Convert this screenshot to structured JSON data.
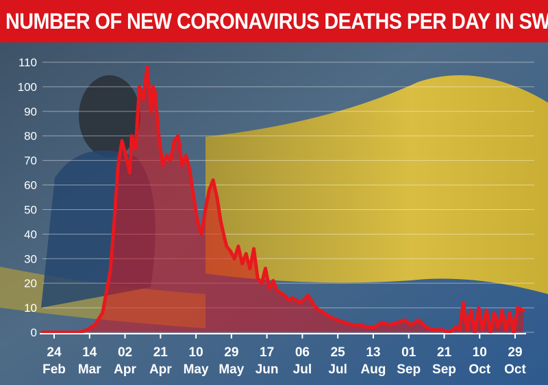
{
  "chart_data": {
    "type": "area",
    "title": "NUMBER OF NEW CORONAVIRUS DEATHS PER DAY IN SWEDEN",
    "xlabel": "",
    "ylabel": "",
    "ylim": [
      0,
      110
    ],
    "yticks": [
      0,
      10,
      20,
      30,
      40,
      50,
      60,
      70,
      80,
      90,
      100,
      110
    ],
    "xticks": [
      {
        "day": "24",
        "month": "Feb"
      },
      {
        "day": "14",
        "month": "Mar"
      },
      {
        "day": "02",
        "month": "Apr"
      },
      {
        "day": "21",
        "month": "Apr"
      },
      {
        "day": "10",
        "month": "May"
      },
      {
        "day": "29",
        "month": "May"
      },
      {
        "day": "17",
        "month": "Jun"
      },
      {
        "day": "06",
        "month": "Jul"
      },
      {
        "day": "25",
        "month": "Jul"
      },
      {
        "day": "13",
        "month": "Aug"
      },
      {
        "day": "01",
        "month": "Sep"
      },
      {
        "day": "21",
        "month": "Sep"
      },
      {
        "day": "10",
        "month": "Oct"
      },
      {
        "day": "29",
        "month": "Oct"
      }
    ],
    "grid": true,
    "line_color": "#e8181e",
    "fill_color": "#d9141b",
    "series": [
      {
        "x": [
          "2020-02-24",
          "2020-03-14",
          "2020-03-18",
          "2020-03-22",
          "2020-03-26",
          "2020-03-30",
          "2020-04-01",
          "2020-04-03",
          "2020-04-05",
          "2020-04-07",
          "2020-04-09",
          "2020-04-10",
          "2020-04-12",
          "2020-04-14",
          "2020-04-16",
          "2020-04-18",
          "2020-04-20",
          "2020-04-21",
          "2020-04-22",
          "2020-04-24",
          "2020-04-26",
          "2020-04-28",
          "2020-04-30",
          "2020-05-02",
          "2020-05-04",
          "2020-05-06",
          "2020-05-08",
          "2020-05-10",
          "2020-05-12",
          "2020-05-14",
          "2020-05-16",
          "2020-05-18",
          "2020-05-20",
          "2020-05-22",
          "2020-05-24",
          "2020-05-26",
          "2020-05-28",
          "2020-05-29",
          "2020-05-31",
          "2020-06-02",
          "2020-06-04",
          "2020-06-06",
          "2020-06-08",
          "2020-06-10",
          "2020-06-12",
          "2020-06-14",
          "2020-06-16",
          "2020-06-18",
          "2020-06-20",
          "2020-06-22",
          "2020-06-24",
          "2020-06-26",
          "2020-06-28",
          "2020-06-30",
          "2020-07-02",
          "2020-07-06",
          "2020-07-10",
          "2020-07-14",
          "2020-07-18",
          "2020-07-22",
          "2020-07-25",
          "2020-07-29",
          "2020-08-02",
          "2020-08-06",
          "2020-08-10",
          "2020-08-13",
          "2020-08-17",
          "2020-08-21",
          "2020-08-25",
          "2020-08-29",
          "2020-09-01",
          "2020-09-05",
          "2020-09-09",
          "2020-09-13",
          "2020-09-17",
          "2020-09-21",
          "2020-09-24",
          "2020-09-26",
          "2020-09-28",
          "2020-09-30",
          "2020-10-02",
          "2020-10-04",
          "2020-10-06",
          "2020-10-08",
          "2020-10-10",
          "2020-10-12",
          "2020-10-14",
          "2020-10-16",
          "2020-10-18",
          "2020-10-20",
          "2020-10-22",
          "2020-10-24",
          "2020-10-26",
          "2020-10-29"
        ],
        "values": [
          0,
          0,
          1,
          3,
          8,
          25,
          45,
          68,
          78,
          72,
          65,
          80,
          75,
          100,
          95,
          108,
          90,
          100,
          98,
          80,
          68,
          72,
          70,
          78,
          80,
          68,
          72,
          66,
          55,
          45,
          40,
          50,
          58,
          62,
          55,
          45,
          38,
          35,
          33,
          30,
          35,
          28,
          32,
          26,
          34,
          22,
          20,
          26,
          18,
          21,
          17,
          16,
          15,
          13,
          14,
          12,
          15,
          10,
          8,
          6,
          5,
          4,
          3,
          3,
          2,
          2,
          4,
          3,
          4,
          5,
          3,
          5,
          2,
          1,
          1,
          0,
          2,
          1,
          12,
          1,
          9,
          0,
          10,
          1,
          9,
          0,
          8,
          2,
          9,
          1,
          8,
          0,
          10,
          9
        ]
      }
    ]
  }
}
